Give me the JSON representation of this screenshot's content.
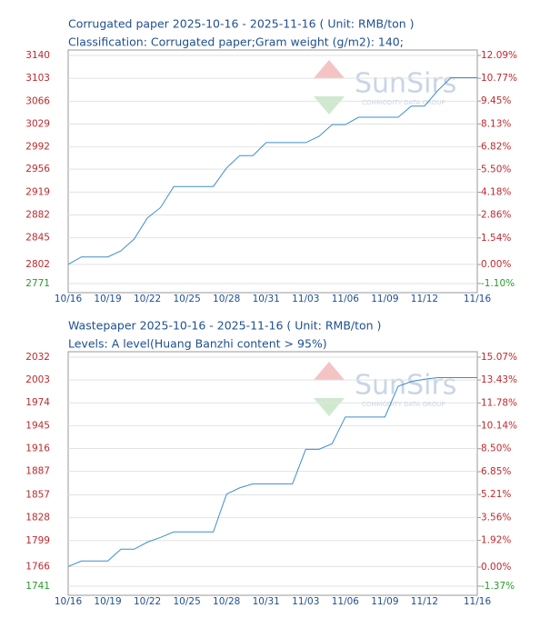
{
  "chart_data": [
    {
      "type": "line",
      "title": "Corrugated paper 2025-10-16 - 2025-11-16    ( Unit: RMB/ton )",
      "subtitle": "Classification: Corrugated paper;Gram weight (g/m2): 140;",
      "watermark": "SunSirs",
      "watermark_sub": "COMMODITY DATA GROUP",
      "categories": [
        "10/16",
        null,
        null,
        "10/19",
        null,
        null,
        "10/22",
        null,
        null,
        "10/25",
        null,
        null,
        "10/28",
        null,
        null,
        "10/31",
        null,
        null,
        "11/03",
        null,
        null,
        "11/06",
        null,
        null,
        "11/09",
        null,
        null,
        "11/12",
        null,
        null,
        null,
        "11/16"
      ],
      "values": [
        2802,
        2814,
        2814,
        2814,
        2824,
        2843,
        2877,
        2894,
        2928,
        2928,
        2928,
        2928,
        2958,
        2978,
        2978,
        2999,
        2999,
        2999,
        2999,
        3009,
        3028,
        3028,
        3040,
        3040,
        3040,
        3040,
        3058,
        3058,
        3083,
        3104,
        3104,
        3104
      ],
      "color": "#3c8dd0",
      "ylim": [
        2771,
        3140
      ],
      "yticks": [
        2771,
        2802,
        2845,
        2882,
        2919,
        2956,
        2992,
        3029,
        3066,
        3103,
        3140
      ],
      "y2lim": [
        -1.1,
        12.09
      ],
      "y2ticks": [
        {
          "value": -1.1,
          "label": "-1.10%"
        },
        {
          "value": 0,
          "label": "0.00%"
        },
        {
          "value": 1.54,
          "label": "1.54%"
        },
        {
          "value": 2.86,
          "label": "2.86%"
        },
        {
          "value": 4.18,
          "label": "4.18%"
        },
        {
          "value": 5.5,
          "label": "5.50%"
        },
        {
          "value": 6.82,
          "label": "6.82%"
        },
        {
          "value": 8.13,
          "label": "8.13%"
        },
        {
          "value": 9.45,
          "label": "9.45%"
        },
        {
          "value": 10.77,
          "label": "10.77%"
        },
        {
          "value": 12.09,
          "label": "12.09%"
        }
      ],
      "grid": true
    },
    {
      "type": "line",
      "title": "Wastepaper 2025-10-16 - 2025-11-16    ( Unit: RMB/ton )",
      "subtitle": "Levels: A level(Huang Banzhi content > 95%)",
      "watermark": "SunSirs",
      "watermark_sub": "COMMODITY DATA GROUP",
      "categories": [
        "10/16",
        null,
        null,
        "10/19",
        null,
        null,
        "10/22",
        null,
        null,
        "10/25",
        null,
        null,
        "10/28",
        null,
        null,
        "10/31",
        null,
        null,
        "11/03",
        null,
        null,
        "11/06",
        null,
        null,
        "11/09",
        null,
        null,
        "11/12",
        null,
        null,
        null,
        "11/16"
      ],
      "values": [
        1766,
        1773,
        1773,
        1773,
        1788,
        1788,
        1797,
        1803,
        1810,
        1810,
        1810,
        1810,
        1858,
        1866,
        1871,
        1871,
        1871,
        1871,
        1915,
        1915,
        1922,
        1956,
        1956,
        1956,
        1956,
        1995,
        2001,
        2004,
        2006,
        2006,
        2006,
        2006
      ],
      "color": "#3c8dd0",
      "ylim": [
        1741,
        2032
      ],
      "yticks": [
        1741,
        1766,
        1799,
        1828,
        1857,
        1887,
        1916,
        1945,
        1974,
        2003,
        2032
      ],
      "y2lim": [
        -1.37,
        15.07
      ],
      "y2ticks": [
        {
          "value": -1.37,
          "label": "-1.37%"
        },
        {
          "value": 0,
          "label": "0.00%"
        },
        {
          "value": 1.92,
          "label": "1.92%"
        },
        {
          "value": 3.56,
          "label": "3.56%"
        },
        {
          "value": 5.21,
          "label": "5.21%"
        },
        {
          "value": 6.85,
          "label": "6.85%"
        },
        {
          "value": 8.5,
          "label": "8.50%"
        },
        {
          "value": 10.14,
          "label": "10.14%"
        },
        {
          "value": 11.78,
          "label": "11.78%"
        },
        {
          "value": 13.43,
          "label": "13.43%"
        },
        {
          "value": 15.07,
          "label": "15.07%"
        }
      ],
      "grid": true
    }
  ]
}
